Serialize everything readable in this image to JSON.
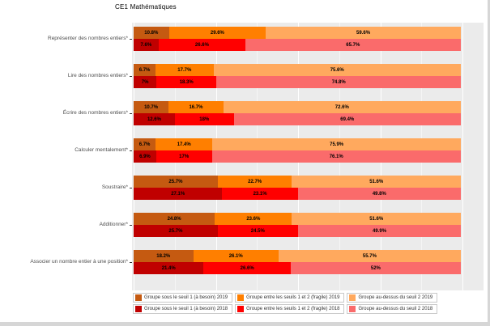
{
  "title": "CE1 Mathématiques",
  "chart_data": {
    "type": "bar",
    "orientation": "horizontal",
    "stacked": true,
    "unit": "%",
    "xlim": [
      0,
      100
    ],
    "grid": true,
    "legend_position": "bottom",
    "panel_background": "#ebebeb",
    "colors": {
      "2019": [
        "#C55A11",
        "#FF7F00",
        "#FFA95E"
      ],
      "2018": [
        "#C00000",
        "#FF0000",
        "#FA6B6B"
      ]
    },
    "segment_names": [
      "Groupe sous le seuil 1 (à besoin)",
      "Groupe entre les seuils 1 et 2 (fragile)",
      "Groupe au-dessus du seuil 2"
    ],
    "categories": [
      "Représenter des nombres entiers*",
      "Lire des nombres entiers*",
      "Écrire des nombres entiers*",
      "Calculer mentalement*",
      "Soustraire*",
      "Additionner*",
      "Associer un nombre entier à une position*"
    ],
    "rows": [
      {
        "category": "Représenter des nombres entiers*",
        "bars": [
          {
            "year": "2019",
            "values": [
              10.8,
              29.6,
              59.6
            ],
            "labels": [
              "10.8%",
              "29.6%",
              "59.6%"
            ]
          },
          {
            "year": "2018",
            "values": [
              7.6,
              26.6,
              65.7
            ],
            "labels": [
              "7.6%",
              "26.6%",
              "65.7%"
            ]
          }
        ]
      },
      {
        "category": "Lire des nombres entiers*",
        "bars": [
          {
            "year": "2019",
            "values": [
              6.7,
              17.7,
              75.6
            ],
            "labels": [
              "6.7%",
              "17.7%",
              "75.6%"
            ]
          },
          {
            "year": "2018",
            "values": [
              7,
              18.3,
              74.8
            ],
            "labels": [
              "7%",
              "18.3%",
              "74.8%"
            ]
          }
        ]
      },
      {
        "category": "Écrire des nombres entiers*",
        "bars": [
          {
            "year": "2019",
            "values": [
              10.7,
              16.7,
              72.6
            ],
            "labels": [
              "10.7%",
              "16.7%",
              "72.6%"
            ]
          },
          {
            "year": "2018",
            "values": [
              12.6,
              18,
              69.4
            ],
            "labels": [
              "12.6%",
              "18%",
              "69.4%"
            ]
          }
        ]
      },
      {
        "category": "Calculer mentalement*",
        "bars": [
          {
            "year": "2019",
            "values": [
              6.7,
              17.4,
              75.9
            ],
            "labels": [
              "6.7%",
              "17.4%",
              "75.9%"
            ]
          },
          {
            "year": "2018",
            "values": [
              6.9,
              17,
              76.1
            ],
            "labels": [
              "6.9%",
              "17%",
              "76.1%"
            ]
          }
        ]
      },
      {
        "category": "Soustraire*",
        "bars": [
          {
            "year": "2019",
            "values": [
              25.7,
              22.7,
              51.6
            ],
            "labels": [
              "25.7%",
              "22.7%",
              "51.6%"
            ]
          },
          {
            "year": "2018",
            "values": [
              27.1,
              23.1,
              49.8
            ],
            "labels": [
              "27.1%",
              "23.1%",
              "49.8%"
            ]
          }
        ]
      },
      {
        "category": "Additionner*",
        "bars": [
          {
            "year": "2019",
            "values": [
              24.8,
              23.6,
              51.6
            ],
            "labels": [
              "24.8%",
              "23.6%",
              "51.6%"
            ]
          },
          {
            "year": "2018",
            "values": [
              25.7,
              24.5,
              49.9
            ],
            "labels": [
              "25.7%",
              "24.5%",
              "49.9%"
            ]
          }
        ]
      },
      {
        "category": "Associer un nombre entier à une position*",
        "bars": [
          {
            "year": "2019",
            "values": [
              18.2,
              26.1,
              55.7
            ],
            "labels": [
              "18.2%",
              "26.1%",
              "55.7%"
            ]
          },
          {
            "year": "2018",
            "values": [
              21.4,
              26.6,
              52
            ],
            "labels": [
              "21.4%",
              "26.6%",
              "52%"
            ]
          }
        ]
      }
    ],
    "legend": [
      {
        "label": "Groupe sous le seuil 1 (à besoin) 2019",
        "color": "#C55A11"
      },
      {
        "label": "Groupe entre les seuils 1 et 2 (fragile) 2019",
        "color": "#FF7F00"
      },
      {
        "label": "Groupe au-dessus du seuil 2 2019",
        "color": "#FFA95E"
      },
      {
        "label": "Groupe sous le seuil 1 (à besoin) 2018",
        "color": "#C00000"
      },
      {
        "label": "Groupe entre les seuils 1 et 2 (fragile) 2018",
        "color": "#FF0000"
      },
      {
        "label": "Groupe au-dessus du seuil 2 2018",
        "color": "#FA6B6B"
      }
    ]
  }
}
